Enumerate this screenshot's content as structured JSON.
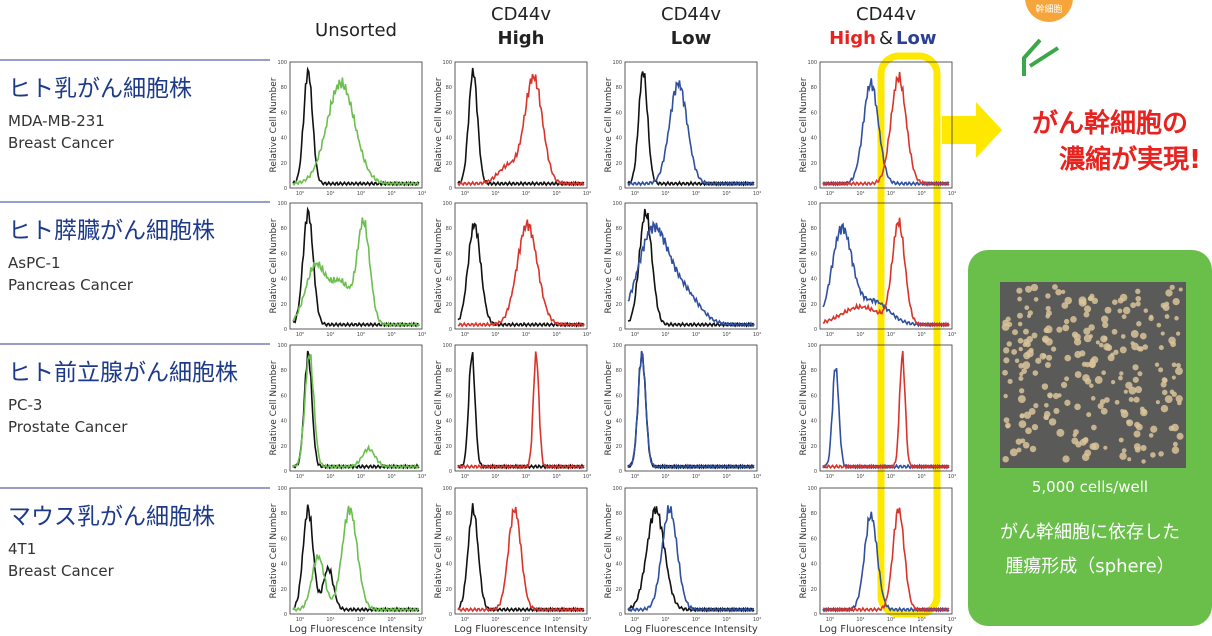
{
  "header": {
    "columns": [
      {
        "line1": "Unsorted"
      },
      {
        "line1": "CD44v",
        "line2": "High"
      },
      {
        "line1": "CD44v",
        "line2": "Low"
      },
      {
        "line1": "CD44v",
        "line2": "High",
        "joiner": "&",
        "line3": "Low"
      }
    ]
  },
  "rows": [
    {
      "title": "ヒト乳がん細胞株",
      "cell_line": "MDA-MB-231",
      "cancer": "Breast Cancer"
    },
    {
      "title": "ヒト膵臓がん細胞株",
      "cell_line": "AsPC-1",
      "cancer": "Pancreas Cancer"
    },
    {
      "title": "ヒト前立腺がん細胞株",
      "cell_line": "PC-3",
      "cancer": "Prostate Cancer"
    },
    {
      "title": "マウス乳がん細胞株",
      "cell_line": "4T1",
      "cancer": "Breast Cancer"
    }
  ],
  "axes": {
    "y_label": "Relative Cell Number",
    "x_label": "Log Fluorescence Intensity",
    "x_ticks": [
      "10⁰",
      "10¹",
      "10²",
      "10³",
      "10⁴"
    ],
    "y_ticks": [
      "0",
      "20",
      "40",
      "60",
      "80",
      "100"
    ]
  },
  "callout": {
    "lines": [
      "がん幹細胞の",
      "濃縮が実現!"
    ]
  },
  "sphere": {
    "count_label": "5,000 cells/well",
    "caption_lines": [
      "がん幹細胞に依存した",
      "腫瘍形成（sphere）"
    ]
  },
  "icon": {
    "label": "幹細胞"
  }
}
